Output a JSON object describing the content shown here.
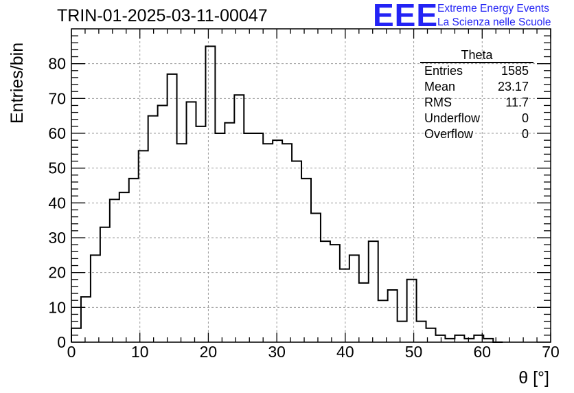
{
  "header": {
    "run_title": "TRIN-01-2025-03-11-00047",
    "logo_text": "EEE",
    "logo_line1": "Extreme Energy Events",
    "logo_line2": "La Scienza nelle Scuole",
    "logo_color": "#2323f5"
  },
  "stats_box": {
    "title": "Theta",
    "rows": [
      {
        "label": "Entries",
        "value": "1585"
      },
      {
        "label": "Mean",
        "value": "23.17"
      },
      {
        "label": "RMS",
        "value": "11.7"
      },
      {
        "label": "Underflow",
        "value": "0"
      },
      {
        "label": "Overflow",
        "value": "0"
      }
    ]
  },
  "chart_data": {
    "type": "bar",
    "style": "step-histogram",
    "xlabel": "θ [°]",
    "ylabel": "Entries/bin",
    "xlim": [
      0,
      70
    ],
    "ylim": [
      0,
      90
    ],
    "xticks": [
      0,
      10,
      20,
      30,
      40,
      50,
      60,
      70
    ],
    "yticks": [
      0,
      10,
      20,
      30,
      40,
      50,
      60,
      70,
      80
    ],
    "grid": true,
    "bin_width": 1.4,
    "bin_edges_start": 0,
    "values": [
      4,
      13,
      25,
      33,
      41,
      43,
      47,
      55,
      65,
      68,
      77,
      57,
      69,
      62,
      85,
      60,
      63,
      71,
      60,
      60,
      57,
      58,
      57,
      52,
      47,
      37,
      29,
      28,
      21,
      25,
      17,
      29,
      12,
      15,
      6,
      18,
      6,
      4,
      2,
      1,
      2,
      1,
      2,
      1,
      0
    ]
  }
}
